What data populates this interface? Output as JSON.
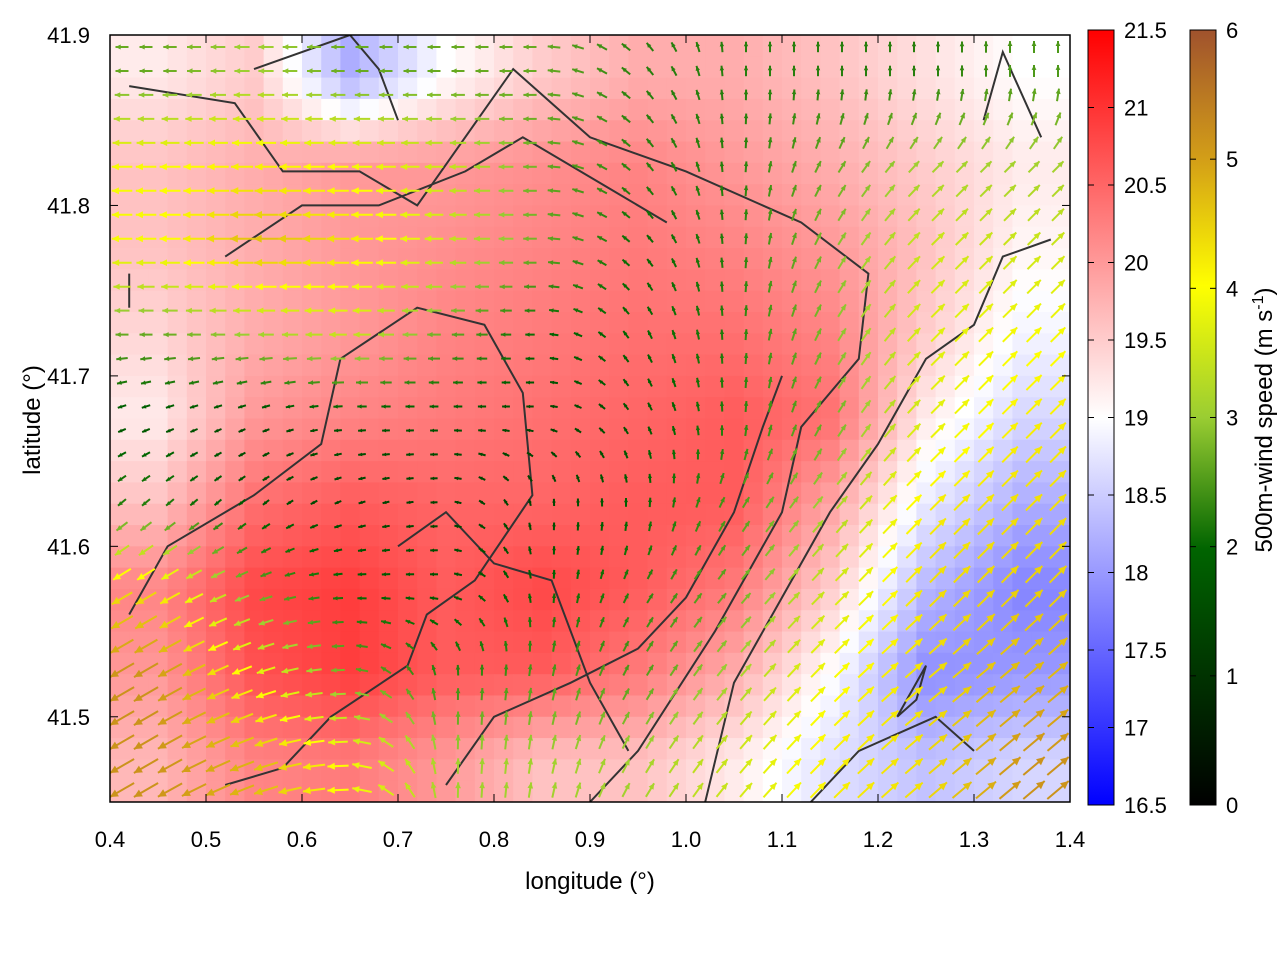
{
  "chart_data": {
    "type": "heatmap",
    "xlabel": "longitude (°)",
    "ylabel": "latitude (°)",
    "xlim": [
      0.4,
      1.4
    ],
    "ylim": [
      41.45,
      41.9
    ],
    "x_ticks": [
      "0.4",
      "0.5",
      "0.6",
      "0.7",
      "0.8",
      "0.9",
      "1.0",
      "1.1",
      "1.2",
      "1.3",
      "1.4"
    ],
    "y_ticks": [
      "41.5",
      "41.6",
      "41.7",
      "41.8",
      "41.9"
    ],
    "colorbars": [
      {
        "name": "temperature",
        "label": "",
        "range": [
          16.5,
          21.5
        ],
        "ticks": [
          "16.5",
          "17",
          "17.5",
          "18",
          "18.5",
          "19",
          "19.5",
          "20",
          "20.5",
          "21",
          "21.5"
        ],
        "colors": [
          "#0000ff",
          "#ffffff",
          "#ff0000"
        ]
      },
      {
        "name": "wind_speed",
        "label": "500m-wind speed (m s-1)",
        "range": [
          0,
          6
        ],
        "ticks": [
          "0",
          "1",
          "2",
          "3",
          "4",
          "5",
          "6"
        ],
        "colors": [
          "#000000",
          "#006400",
          "#9acd32",
          "#ffff00",
          "#d4a017",
          "#a0522d"
        ]
      }
    ],
    "temperature_field": {
      "lon_centers": [
        0.45,
        0.55,
        0.65,
        0.75,
        0.85,
        0.95,
        1.05,
        1.15,
        1.25,
        1.35
      ],
      "lat_centers": [
        41.875,
        41.825,
        41.775,
        41.725,
        41.675,
        41.625,
        41.575,
        41.525,
        41.475
      ],
      "values": [
        [
          19.2,
          19.5,
          18.2,
          19.0,
          19.5,
          19.8,
          19.8,
          19.6,
          19.3,
          19.0
        ],
        [
          19.6,
          19.8,
          20.0,
          20.0,
          20.1,
          20.2,
          20.0,
          19.8,
          19.5,
          19.2
        ],
        [
          19.6,
          19.8,
          20.0,
          20.1,
          20.2,
          20.3,
          20.2,
          20.0,
          19.6,
          19.1
        ],
        [
          19.4,
          19.8,
          20.0,
          20.2,
          20.3,
          20.4,
          20.4,
          20.2,
          19.5,
          18.9
        ],
        [
          19.2,
          20.0,
          20.2,
          20.3,
          20.4,
          20.5,
          20.6,
          20.4,
          19.2,
          18.6
        ],
        [
          19.6,
          20.4,
          20.6,
          20.5,
          20.5,
          20.6,
          20.6,
          19.9,
          18.8,
          18.2
        ],
        [
          20.2,
          20.8,
          20.9,
          20.6,
          20.8,
          20.6,
          20.3,
          19.5,
          18.3,
          17.8
        ],
        [
          20.0,
          20.7,
          20.9,
          20.6,
          20.6,
          20.3,
          19.8,
          19.0,
          17.9,
          18.0
        ],
        [
          19.7,
          20.2,
          20.3,
          20.0,
          19.6,
          19.6,
          19.2,
          18.7,
          18.4,
          18.6
        ]
      ]
    },
    "wind_field": {
      "lon_centers": [
        0.45,
        0.55,
        0.65,
        0.75,
        0.85,
        0.95,
        1.05,
        1.15,
        1.25,
        1.35
      ],
      "lat_centers": [
        41.875,
        41.825,
        41.775,
        41.725,
        41.675,
        41.625,
        41.575,
        41.525,
        41.475
      ],
      "speed": [
        [
          2.0,
          2.5,
          2.0,
          2.0,
          2.0,
          1.5,
          1.5,
          1.5,
          1.5,
          1.8
        ],
        [
          3.5,
          3.8,
          3.5,
          3.0,
          2.0,
          1.5,
          1.5,
          2.0,
          2.5,
          2.5
        ],
        [
          3.5,
          4.5,
          4.0,
          3.0,
          2.0,
          1.2,
          1.5,
          2.2,
          3.0,
          3.0
        ],
        [
          2.0,
          2.5,
          3.0,
          2.0,
          1.2,
          1.2,
          1.5,
          2.2,
          3.2,
          3.5
        ],
        [
          1.0,
          0.8,
          1.0,
          1.0,
          0.8,
          1.0,
          1.5,
          2.0,
          3.2,
          3.8
        ],
        [
          1.5,
          1.0,
          0.8,
          0.8,
          0.8,
          1.2,
          1.8,
          2.5,
          3.8,
          4.0
        ],
        [
          4.0,
          2.0,
          1.2,
          1.0,
          1.2,
          1.5,
          2.0,
          3.0,
          4.0,
          4.2
        ],
        [
          5.0,
          3.5,
          2.0,
          1.5,
          1.8,
          1.8,
          2.5,
          3.5,
          4.0,
          4.5
        ],
        [
          5.0,
          4.5,
          3.5,
          2.5,
          2.5,
          2.5,
          3.0,
          3.8,
          4.0,
          5.0
        ]
      ],
      "direction_deg": [
        [
          180,
          180,
          180,
          180,
          180,
          135,
          90,
          90,
          90,
          90
        ],
        [
          180,
          180,
          180,
          180,
          180,
          135,
          90,
          60,
          45,
          45
        ],
        [
          180,
          180,
          180,
          180,
          180,
          135,
          90,
          60,
          45,
          45
        ],
        [
          180,
          180,
          180,
          180,
          180,
          120,
          90,
          60,
          45,
          45
        ],
        [
          200,
          200,
          180,
          180,
          180,
          120,
          90,
          60,
          45,
          45
        ],
        [
          220,
          220,
          200,
          180,
          90,
          90,
          60,
          50,
          45,
          45
        ],
        [
          210,
          200,
          180,
          180,
          90,
          60,
          50,
          45,
          45,
          45
        ],
        [
          210,
          200,
          180,
          90,
          80,
          60,
          50,
          45,
          40,
          40
        ],
        [
          210,
          200,
          180,
          90,
          80,
          60,
          50,
          45,
          40,
          40
        ]
      ]
    },
    "contours": [
      [
        [
          0.42,
          41.87
        ],
        [
          0.53,
          41.86
        ],
        [
          0.58,
          41.82
        ],
        [
          0.66,
          41.82
        ],
        [
          0.72,
          41.8
        ],
        [
          0.82,
          41.88
        ],
        [
          0.9,
          41.84
        ],
        [
          1.0,
          41.82
        ],
        [
          1.12,
          41.79
        ],
        [
          1.19,
          41.76
        ],
        [
          1.18,
          41.71
        ],
        [
          1.12,
          41.67
        ],
        [
          1.1,
          41.62
        ],
        [
          1.03,
          41.55
        ],
        [
          0.95,
          41.48
        ],
        [
          0.9,
          41.45
        ]
      ],
      [
        [
          0.42,
          41.56
        ],
        [
          0.46,
          41.6
        ],
        [
          0.55,
          41.63
        ],
        [
          0.62,
          41.66
        ],
        [
          0.64,
          41.71
        ],
        [
          0.72,
          41.74
        ],
        [
          0.79,
          41.73
        ],
        [
          0.83,
          41.69
        ],
        [
          0.84,
          41.63
        ],
        [
          0.78,
          41.58
        ],
        [
          0.73,
          41.56
        ],
        [
          0.71,
          41.53
        ],
        [
          0.63,
          41.5
        ],
        [
          0.58,
          41.47
        ],
        [
          0.52,
          41.46
        ]
      ],
      [
        [
          0.52,
          41.77
        ],
        [
          0.6,
          41.8
        ],
        [
          0.68,
          41.8
        ],
        [
          0.77,
          41.82
        ],
        [
          0.83,
          41.84
        ],
        [
          0.92,
          41.81
        ],
        [
          0.98,
          41.79
        ]
      ],
      [
        [
          0.55,
          41.88
        ],
        [
          0.65,
          41.9
        ],
        [
          0.68,
          41.88
        ],
        [
          0.7,
          41.85
        ]
      ],
      [
        [
          0.7,
          41.6
        ],
        [
          0.75,
          41.62
        ],
        [
          0.8,
          41.59
        ],
        [
          0.86,
          41.58
        ],
        [
          0.9,
          41.52
        ],
        [
          0.94,
          41.48
        ]
      ],
      [
        [
          1.02,
          41.45
        ],
        [
          1.05,
          41.52
        ],
        [
          1.1,
          41.57
        ],
        [
          1.15,
          41.62
        ],
        [
          1.2,
          41.66
        ],
        [
          1.25,
          41.71
        ],
        [
          1.3,
          41.73
        ],
        [
          1.33,
          41.77
        ],
        [
          1.38,
          41.78
        ]
      ],
      [
        [
          0.75,
          41.46
        ],
        [
          0.8,
          41.5
        ],
        [
          0.88,
          41.52
        ],
        [
          0.95,
          41.54
        ],
        [
          1.0,
          41.57
        ],
        [
          1.05,
          41.62
        ],
        [
          1.08,
          41.67
        ],
        [
          1.1,
          41.7
        ]
      ],
      [
        [
          1.13,
          41.45
        ],
        [
          1.18,
          41.48
        ],
        [
          1.26,
          41.5
        ],
        [
          1.3,
          41.48
        ]
      ],
      [
        [
          1.22,
          41.5
        ],
        [
          1.25,
          41.53
        ],
        [
          1.24,
          41.51
        ],
        [
          1.22,
          41.5
        ]
      ],
      [
        [
          1.31,
          41.85
        ],
        [
          1.33,
          41.89
        ],
        [
          1.37,
          41.84
        ]
      ],
      [
        [
          0.42,
          41.74
        ],
        [
          0.42,
          41.76
        ]
      ]
    ]
  }
}
